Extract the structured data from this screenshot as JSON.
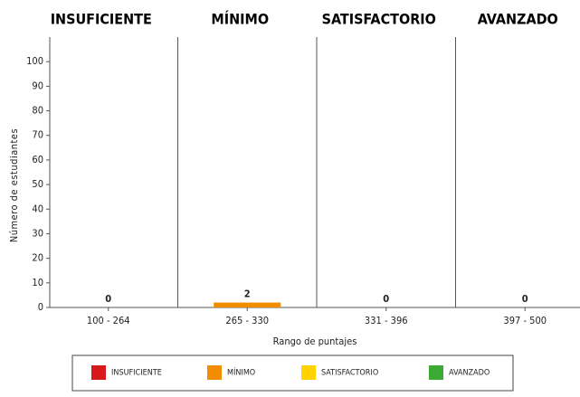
{
  "chart_data": {
    "type": "bar",
    "levels": [
      "INSUFICIENTE",
      "MÍNIMO",
      "SATISFACTORIO",
      "AVANZADO"
    ],
    "colors": [
      "#d7191c",
      "#f28c00",
      "#ffd200",
      "#3aaa35"
    ],
    "categories": [
      "100 - 264",
      "265 - 330",
      "331 - 396",
      "397 - 500"
    ],
    "values": [
      0,
      2,
      0,
      0
    ],
    "y_label": "Número de estudiantes",
    "x_label": "Rango de puntajes",
    "ylim": [
      0,
      110
    ],
    "yticks": [
      0,
      10,
      20,
      30,
      40,
      50,
      60,
      70,
      80,
      90,
      100
    ]
  }
}
